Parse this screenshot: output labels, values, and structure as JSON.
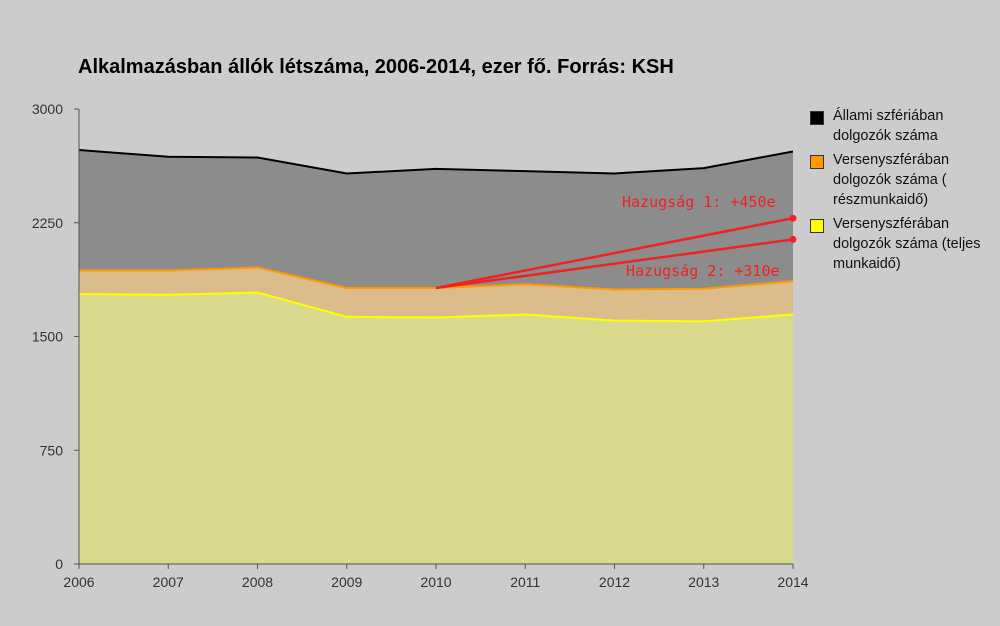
{
  "chart_data": {
    "type": "area",
    "title": "Alkalmazásban állók létszáma, 2006-2014, ezer fő. Forrás: KSH",
    "x": [
      "2006",
      "2007",
      "2008",
      "2009",
      "2010",
      "2011",
      "2012",
      "2013",
      "2014"
    ],
    "ylim": [
      0,
      3000
    ],
    "yticks": [
      "0",
      "750",
      "1500",
      "2250",
      "3000"
    ],
    "stacked": true,
    "grid": false,
    "legend_position": "right",
    "series": [
      {
        "name": "Versenyszférában dolgozók száma (teljes munkaidő)",
        "color": "#ffff00",
        "fill": "#d9d98e",
        "values": [
          1780,
          1775,
          1790,
          1630,
          1625,
          1645,
          1605,
          1600,
          1645
        ]
      },
      {
        "name": "Versenyszférában dolgozók száma ( részmunkaidő)",
        "color": "#ff9900",
        "fill": "#dcbc8a",
        "values": [
          155,
          160,
          165,
          190,
          195,
          200,
          205,
          215,
          220
        ]
      },
      {
        "name": "Állami szfériában dolgozók száma",
        "color": "#000000",
        "fill": "#8c8c8c",
        "values": [
          795,
          750,
          725,
          755,
          785,
          745,
          765,
          795,
          855
        ]
      }
    ],
    "annotations": [
      {
        "text": "Hazugság 1: +450e",
        "from": [
          "2010",
          1820
        ],
        "to": [
          "2014",
          2280
        ],
        "color": "#ee2222"
      },
      {
        "text": "Hazugság 2: +310e",
        "from": [
          "2010",
          1820
        ],
        "to": [
          "2014",
          2140
        ],
        "color": "#ee2222"
      }
    ]
  }
}
